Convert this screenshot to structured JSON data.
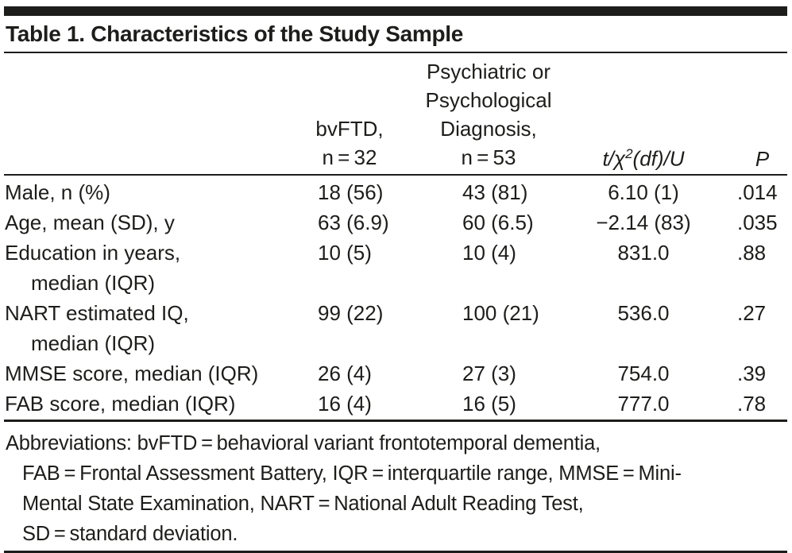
{
  "title": "Table 1. Characteristics of the Study Sample",
  "colors": {
    "text": "#1d1d1b",
    "rule": "#1d1d1b",
    "background": "#ffffff"
  },
  "columns": {
    "bvftd": {
      "line1": "bvFTD,",
      "line2": "n = 32"
    },
    "psych": {
      "line1": "Psychiatric or",
      "line2": "Psychological",
      "line3": "Diagnosis,",
      "line4": "n = 53"
    },
    "stat": {
      "pre": "t/χ",
      "sup": "2",
      "post": "(df)/U"
    },
    "p": "P"
  },
  "rows": [
    {
      "label1": "Male, n (%)",
      "bvftd": "18 (56)",
      "psych": "43 (81)",
      "stat": "6.10 (1)",
      "p": ".014"
    },
    {
      "label1": "Age, mean (SD), y",
      "bvftd": "63 (6.9)",
      "psych": "60 (6.5)",
      "stat": "−2.14 (83)",
      "p": ".035"
    },
    {
      "label1": "Education in years,",
      "label2": "median (IQR)",
      "bvftd": "10 (5)",
      "psych": "10 (4)",
      "stat": "831.0",
      "p": ".88"
    },
    {
      "label1": "NART estimated IQ,",
      "label2": "median (IQR)",
      "bvftd": "99 (22)",
      "psych": "100 (21)",
      "stat": "536.0",
      "p": ".27"
    },
    {
      "label1": "MMSE score, median (IQR)",
      "bvftd": "26 (4)",
      "psych": "27 (3)",
      "stat": "754.0",
      "p": ".39"
    },
    {
      "label1": "FAB score, median (IQR)",
      "bvftd": "16 (4)",
      "psych": "16 (5)",
      "stat": "777.0",
      "p": ".78"
    }
  ],
  "footnote": {
    "lines": [
      "Abbreviations: bvFTD = behavioral variant frontotemporal dementia,",
      "FAB = Frontal Assessment Battery, IQR = interquartile range, MMSE = Mini-",
      "Mental State Examination, NART = National Adult Reading Test,",
      "SD = standard deviation."
    ]
  }
}
